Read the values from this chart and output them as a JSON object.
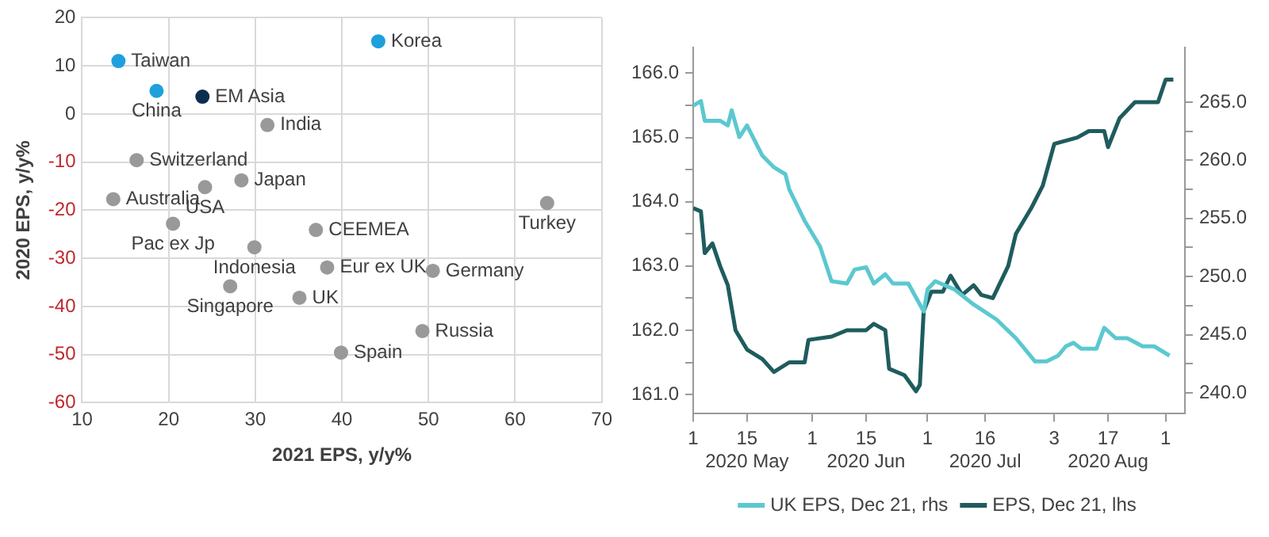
{
  "chart_data": [
    {
      "type": "scatter",
      "xlabel": "2021 EPS, y/y%",
      "ylabel": "2020 EPS, y/y%",
      "xlim": [
        10,
        70
      ],
      "ylim": [
        -60,
        20
      ],
      "xticks": [
        10,
        20,
        30,
        40,
        50,
        60,
        70
      ],
      "yticks": [
        -60,
        -50,
        -40,
        -30,
        -20,
        -10,
        0,
        10,
        20
      ],
      "grid": true,
      "marker": "circle",
      "x": [
        44.2,
        14.2,
        18.6,
        23.9,
        31.4,
        16.3,
        28.4,
        24.2,
        13.6,
        63.7,
        20.5,
        37.0,
        29.9,
        38.3,
        50.5,
        27.1,
        35.1,
        49.3,
        39.9
      ],
      "values": [
        15.1,
        11.0,
        4.8,
        3.6,
        -2.3,
        -9.6,
        -13.8,
        -15.2,
        -17.7,
        -18.5,
        -22.8,
        -24.1,
        -27.7,
        -31.9,
        -32.6,
        -35.8,
        -38.2,
        -45.1,
        -49.6
      ],
      "colors": [
        "#1ea0dc",
        "#1ea0dc",
        "#1ea0dc",
        "#0b2d4f",
        "#999999",
        "#999999",
        "#999999",
        "#999999",
        "#999999",
        "#999999",
        "#999999",
        "#999999",
        "#999999",
        "#999999",
        "#999999",
        "#999999",
        "#999999",
        "#999999",
        "#999999"
      ],
      "annotations": [
        {
          "text": "Korea",
          "x": 44.2,
          "y": 15.1
        },
        {
          "text": "Taiwan",
          "x": 14.2,
          "y": 11.0
        },
        {
          "text": "China",
          "x": 18.6,
          "y": 4.8
        },
        {
          "text": "EM Asia",
          "x": 23.9,
          "y": 3.6
        },
        {
          "text": "India",
          "x": 31.4,
          "y": -2.3
        },
        {
          "text": "Switzerland",
          "x": 16.3,
          "y": -9.6
        },
        {
          "text": "Japan",
          "x": 28.4,
          "y": -13.8
        },
        {
          "text": "USA",
          "x": 24.2,
          "y": -15.2
        },
        {
          "text": "Australia",
          "x": 13.6,
          "y": -17.7
        },
        {
          "text": "Turkey",
          "x": 63.7,
          "y": -18.5
        },
        {
          "text": "Pac ex Jp",
          "x": 20.5,
          "y": -22.8
        },
        {
          "text": "CEEMEA",
          "x": 37.0,
          "y": -24.1
        },
        {
          "text": "Indonesia",
          "x": 29.9,
          "y": -27.7
        },
        {
          "text": "Eur ex UK",
          "x": 38.3,
          "y": -31.9
        },
        {
          "text": "Germany",
          "x": 50.5,
          "y": -32.6
        },
        {
          "text": "Singapore",
          "x": 27.1,
          "y": -35.8
        },
        {
          "text": "UK",
          "x": 35.1,
          "y": -38.2
        },
        {
          "text": "Russia",
          "x": 49.3,
          "y": -45.1
        },
        {
          "text": "Spain",
          "x": 39.9,
          "y": -49.6
        }
      ]
    },
    {
      "type": "line",
      "legend": "bottom",
      "marker": "none",
      "line_style": "solid",
      "xlim": [
        "2020-05-01",
        "2020-09-06"
      ],
      "xticks": [
        {
          "value": "2020-05-01",
          "label": "1"
        },
        {
          "value": "2020-05-15",
          "label": "15\n2020 May"
        },
        {
          "value": "2020-06-01",
          "label": "1"
        },
        {
          "value": "2020-06-15",
          "label": "15\n2020 Jun"
        },
        {
          "value": "2020-07-01",
          "label": "1"
        },
        {
          "value": "2020-07-16",
          "label": "16\n2020 Jul"
        },
        {
          "value": "2020-08-03",
          "label": "3"
        },
        {
          "value": "2020-08-17",
          "label": "17\n2020 Aug"
        },
        {
          "value": "2020-09-01",
          "label": "1"
        }
      ],
      "ylim": [
        160.7,
        166.4
      ],
      "yticks": [
        {
          "value": 161,
          "label": "161.0"
        },
        {
          "value": 161.5,
          "label": null
        },
        {
          "value": 162,
          "label": "162.0"
        },
        {
          "value": 162.5,
          "label": null
        },
        {
          "value": 163,
          "label": "163.0"
        },
        {
          "value": 163.5,
          "label": null
        },
        {
          "value": 164,
          "label": "164.0"
        },
        {
          "value": 164.5,
          "label": null
        },
        {
          "value": 165,
          "label": "165.0"
        },
        {
          "value": 165.5,
          "label": null
        },
        {
          "value": 166,
          "label": "166.0"
        }
      ],
      "y2lim": [
        238.2,
        269.7
      ],
      "y2ticks": [
        {
          "value": 240,
          "label": "240.0"
        },
        {
          "value": 242.5,
          "label": null
        },
        {
          "value": 245,
          "label": "245.0"
        },
        {
          "value": 247.5,
          "label": null
        },
        {
          "value": 250,
          "label": "250.0"
        },
        {
          "value": 252.5,
          "label": null
        },
        {
          "value": 255,
          "label": "255.0"
        },
        {
          "value": 257.5,
          "label": null
        },
        {
          "value": 260,
          "label": "260.0"
        },
        {
          "value": 262.5,
          "label": null
        },
        {
          "value": 265,
          "label": "265.0"
        }
      ],
      "series": [
        {
          "name": "UK EPS, Dec 21, rhs",
          "color": "#5bc8d0",
          "axis": "y2",
          "x": [
            "2020-05-01",
            "2020-05-03",
            "2020-05-04",
            "2020-05-08",
            "2020-05-10",
            "2020-05-11",
            "2020-05-13",
            "2020-05-15",
            "2020-05-19",
            "2020-05-22",
            "2020-05-25",
            "2020-05-26",
            "2020-05-30",
            "2020-06-03",
            "2020-06-06",
            "2020-06-10",
            "2020-06-12",
            "2020-06-15",
            "2020-06-17",
            "2020-06-20",
            "2020-06-22",
            "2020-06-26",
            "2020-06-30",
            "2020-07-01",
            "2020-07-03",
            "2020-07-08",
            "2020-07-13",
            "2020-07-19",
            "2020-07-24",
            "2020-07-29",
            "2020-08-01",
            "2020-08-04",
            "2020-08-06",
            "2020-08-08",
            "2020-08-10",
            "2020-08-14",
            "2020-08-16",
            "2020-08-19",
            "2020-08-22",
            "2020-08-26",
            "2020-08-29",
            "2020-09-02"
          ],
          "values": [
            264.7,
            265.1,
            263.4,
            263.4,
            263.0,
            264.3,
            262.0,
            263.0,
            260.4,
            259.4,
            258.8,
            257.5,
            254.8,
            252.6,
            249.6,
            249.4,
            250.6,
            250.8,
            249.4,
            250.2,
            249.4,
            249.4,
            247.0,
            248.9,
            249.6,
            248.9,
            247.6,
            246.3,
            244.7,
            242.7,
            242.7,
            243.2,
            244.0,
            244.3,
            243.8,
            243.8,
            245.6,
            244.7,
            244.7,
            244.0,
            244.0,
            243.2
          ]
        },
        {
          "name": "EPS, Dec 21, lhs",
          "color": "#1f5c5e",
          "axis": "y",
          "x": [
            "2020-05-01",
            "2020-05-03",
            "2020-05-04",
            "2020-05-06",
            "2020-05-08",
            "2020-05-10",
            "2020-05-12",
            "2020-05-15",
            "2020-05-19",
            "2020-05-22",
            "2020-05-26",
            "2020-05-30",
            "2020-05-31",
            "2020-06-06",
            "2020-06-10",
            "2020-06-15",
            "2020-06-17",
            "2020-06-20",
            "2020-06-21",
            "2020-06-25",
            "2020-06-28",
            "2020-06-29",
            "2020-06-30",
            "2020-07-02",
            "2020-07-05",
            "2020-07-07",
            "2020-07-10",
            "2020-07-13",
            "2020-07-15",
            "2020-07-18",
            "2020-07-22",
            "2020-07-24",
            "2020-07-28",
            "2020-07-31",
            "2020-08-03",
            "2020-08-06",
            "2020-08-09",
            "2020-08-12",
            "2020-08-16",
            "2020-08-17",
            "2020-08-20",
            "2020-08-24",
            "2020-08-30",
            "2020-09-01",
            "2020-09-03"
          ],
          "values": [
            163.9,
            163.85,
            163.2,
            163.35,
            163.0,
            162.7,
            162.0,
            161.7,
            161.55,
            161.35,
            161.5,
            161.5,
            161.85,
            161.9,
            162.0,
            162.0,
            162.1,
            162.0,
            161.4,
            161.3,
            161.05,
            161.15,
            162.3,
            162.6,
            162.6,
            162.85,
            162.55,
            162.7,
            162.55,
            162.5,
            163.0,
            163.5,
            163.9,
            164.25,
            164.9,
            164.95,
            165.0,
            165.1,
            165.1,
            164.85,
            165.3,
            165.55,
            165.55,
            165.9,
            165.9
          ]
        }
      ]
    }
  ]
}
